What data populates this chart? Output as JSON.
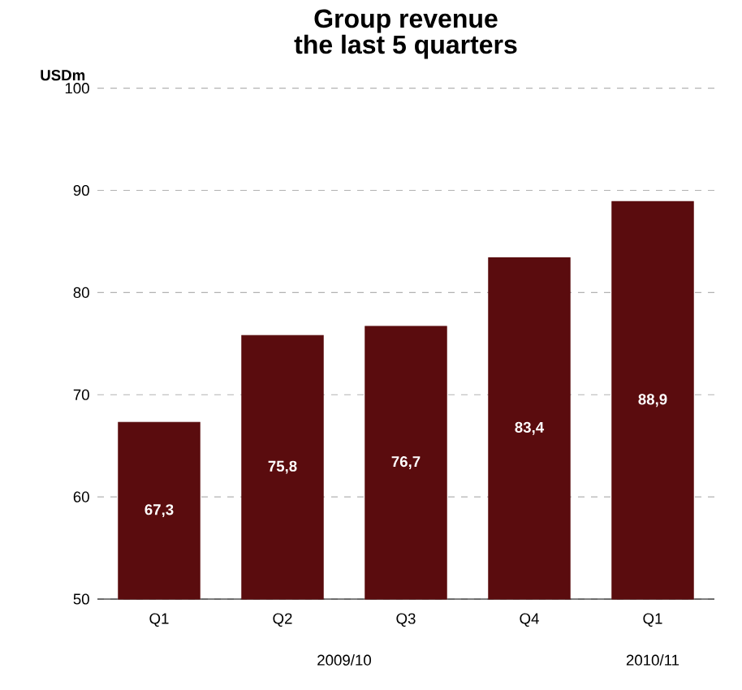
{
  "chart_data": {
    "type": "bar",
    "title": "Group revenue the last 5 quarters",
    "ylabel": "USDm",
    "categories": [
      "Q1",
      "Q2",
      "Q3",
      "Q4",
      "Q1"
    ],
    "values": [
      67.3,
      75.8,
      76.7,
      83.4,
      88.9
    ],
    "value_labels": [
      "67,3",
      "75,8",
      "76,7",
      "83,4",
      "88,9"
    ],
    "color": "#5a0c0e",
    "ylim": [
      50,
      100
    ],
    "yticks": [
      50,
      60,
      70,
      80,
      90,
      100
    ],
    "grid": "y",
    "annotations": [
      "2009/10",
      "2010/11"
    ]
  }
}
